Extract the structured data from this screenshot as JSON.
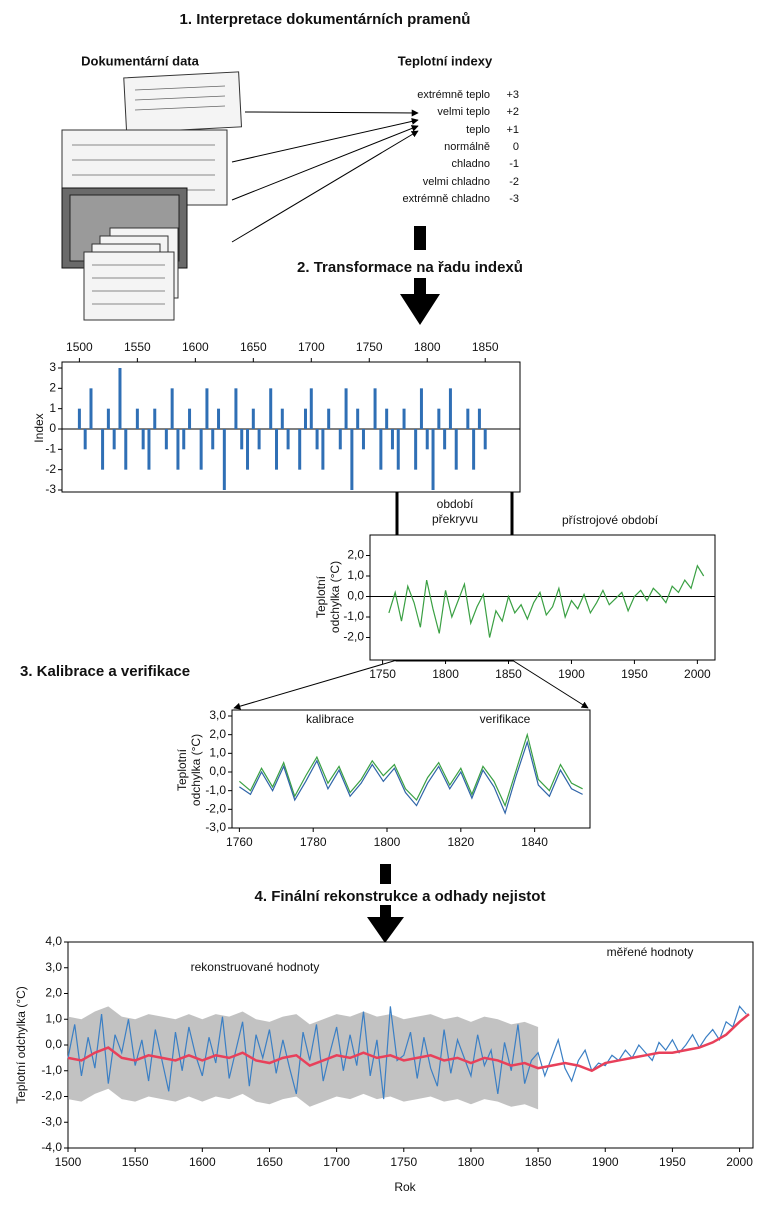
{
  "sections": [
    "1. Interpretace dokumentárních pramenů",
    "2. Transformace na řadu indexů",
    "3. Kalibrace a verifikace",
    "4. Finální rekonstrukce a odhady nejistot"
  ],
  "documentary": {
    "title": "Dokumentární data"
  },
  "index_table": {
    "title": "Teplotní indexy",
    "rows": [
      [
        "extrémně teplo",
        "+3"
      ],
      [
        "velmi teplo",
        "+2"
      ],
      [
        "teplo",
        "+1"
      ],
      [
        "normálně",
        "0"
      ],
      [
        "chladno",
        "-1"
      ],
      [
        "velmi chladno",
        "-2"
      ],
      [
        "extrémně chladno",
        "-3"
      ]
    ]
  },
  "chart_data": [
    {
      "type": "bar",
      "ylabel": [
        "Index"
      ],
      "color": "#2f6fb5",
      "zero_line": true,
      "xlim": [
        1485,
        1880
      ],
      "ylim": [
        -3,
        3
      ],
      "xticks": [
        1500,
        1550,
        1600,
        1650,
        1700,
        1750,
        1800,
        1850
      ],
      "yticks": [
        -3,
        -2,
        -1,
        0,
        1,
        2,
        3
      ],
      "x": [
        1500,
        1505,
        1510,
        1515,
        1520,
        1525,
        1530,
        1535,
        1540,
        1545,
        1550,
        1555,
        1560,
        1565,
        1570,
        1575,
        1580,
        1585,
        1590,
        1595,
        1600,
        1605,
        1610,
        1615,
        1620,
        1625,
        1630,
        1635,
        1640,
        1645,
        1650,
        1655,
        1660,
        1665,
        1670,
        1675,
        1680,
        1685,
        1690,
        1695,
        1700,
        1705,
        1710,
        1715,
        1720,
        1725,
        1730,
        1735,
        1740,
        1745,
        1750,
        1755,
        1760,
        1765,
        1770,
        1775,
        1780,
        1785,
        1790,
        1795,
        1800,
        1805,
        1810,
        1815,
        1820,
        1825,
        1830,
        1835,
        1840,
        1845,
        1850
      ],
      "values": [
        1,
        -1,
        2,
        0,
        -2,
        1,
        -1,
        3,
        -2,
        0,
        1,
        -1,
        -2,
        1,
        0,
        -1,
        2,
        -2,
        -1,
        1,
        0,
        -2,
        2,
        -1,
        1,
        -3,
        0,
        2,
        -1,
        -2,
        1,
        -1,
        0,
        2,
        -2,
        1,
        -1,
        0,
        -2,
        1,
        2,
        -1,
        -2,
        1,
        0,
        -1,
        2,
        -3,
        1,
        -1,
        0,
        2,
        -2,
        1,
        -1,
        -2,
        1,
        0,
        -2,
        2,
        -1,
        -3,
        1,
        -1,
        2,
        -2,
        0,
        1,
        -2,
        1,
        -1
      ]
    },
    {
      "type": "line",
      "ylabel": [
        "Teplotní",
        "odchylka (°C)"
      ],
      "zero_line": true,
      "annotations": [
        "období",
        "překryvu",
        "přístrojové období"
      ],
      "xlim": [
        1740,
        2014
      ],
      "ylim": [
        -3,
        3
      ],
      "xticks": [
        1750,
        1800,
        1850,
        1900,
        1950,
        2000
      ],
      "yticks": [
        {
          "value": 2,
          "label": "2,0"
        },
        {
          "value": 1,
          "label": "1,0"
        },
        {
          "value": 0,
          "label": "0,0"
        },
        {
          "value": -1,
          "label": "-1,0"
        },
        {
          "value": -2,
          "label": "-2,0"
        }
      ],
      "series": [
        {
          "color": "#3aa043",
          "x": [
            1755,
            1760,
            1765,
            1770,
            1775,
            1780,
            1785,
            1790,
            1795,
            1800,
            1805,
            1810,
            1815,
            1820,
            1825,
            1830,
            1835,
            1840,
            1845,
            1850,
            1855,
            1860,
            1865,
            1870,
            1875,
            1880,
            1885,
            1890,
            1895,
            1900,
            1905,
            1910,
            1915,
            1920,
            1925,
            1930,
            1935,
            1940,
            1945,
            1950,
            1955,
            1960,
            1965,
            1970,
            1975,
            1980,
            1985,
            1990,
            1995,
            2000,
            2005
          ],
          "values": [
            -0.8,
            0.2,
            -1.2,
            0.5,
            -0.3,
            -1.5,
            0.8,
            -0.6,
            -1.8,
            0.3,
            -1.0,
            -0.2,
            0.6,
            -1.3,
            -0.5,
            0.1,
            -2.0,
            -0.7,
            -1.2,
            0.0,
            -0.8,
            -0.4,
            -1.1,
            -0.3,
            0.2,
            -0.9,
            -0.5,
            0.4,
            -1.0,
            -0.2,
            -0.6,
            0.1,
            -0.8,
            -0.3,
            0.3,
            -0.4,
            -0.1,
            0.2,
            -0.7,
            0.0,
            0.3,
            -0.2,
            0.4,
            0.1,
            -0.3,
            0.5,
            0.2,
            0.8,
            0.4,
            1.5,
            1.0
          ]
        }
      ]
    },
    {
      "type": "line",
      "ylabel": [
        "Teplotní",
        "odchylka (°C)"
      ],
      "annotations": [
        "kalibrace",
        "verifikace"
      ],
      "xlim": [
        1758,
        1855
      ],
      "ylim": [
        -3,
        3
      ],
      "xticks": [
        1760,
        1780,
        1800,
        1820,
        1840
      ],
      "yticks": [
        {
          "value": 3,
          "label": "3,0"
        },
        {
          "value": 2,
          "label": "2,0"
        },
        {
          "value": 1,
          "label": "1,0"
        },
        {
          "value": 0,
          "label": "0,0"
        },
        {
          "value": -1,
          "label": "-1,0"
        },
        {
          "value": -2,
          "label": "-2,0"
        },
        {
          "value": -3,
          "label": "-3,0"
        }
      ],
      "series": [
        {
          "color": "#3aa043",
          "x": [
            1760,
            1763,
            1766,
            1769,
            1772,
            1775,
            1778,
            1781,
            1784,
            1787,
            1790,
            1793,
            1796,
            1799,
            1802,
            1805,
            1808,
            1811,
            1814,
            1817,
            1820,
            1823,
            1826,
            1829,
            1832,
            1835,
            1838,
            1841,
            1844,
            1847,
            1850,
            1853
          ],
          "values": [
            -0.5,
            -1.0,
            0.2,
            -0.8,
            0.5,
            -1.3,
            -0.2,
            0.8,
            -0.6,
            0.3,
            -1.1,
            -0.4,
            0.6,
            -0.2,
            0.4,
            -0.9,
            -1.5,
            -0.3,
            0.5,
            -0.7,
            0.2,
            -1.2,
            0.3,
            -0.5,
            -1.8,
            0.1,
            2.0,
            -0.4,
            -1.0,
            0.4,
            -0.6,
            -0.9
          ]
        },
        {
          "color": "#2f64a8",
          "x": [
            1760,
            1763,
            1766,
            1769,
            1772,
            1775,
            1778,
            1781,
            1784,
            1787,
            1790,
            1793,
            1796,
            1799,
            1802,
            1805,
            1808,
            1811,
            1814,
            1817,
            1820,
            1823,
            1826,
            1829,
            1832,
            1835,
            1838,
            1841,
            1844,
            1847,
            1850,
            1853
          ],
          "values": [
            -0.8,
            -1.2,
            0.0,
            -1.0,
            0.3,
            -1.5,
            -0.5,
            0.6,
            -0.9,
            0.1,
            -1.3,
            -0.6,
            0.4,
            -0.5,
            0.2,
            -1.1,
            -1.8,
            -0.6,
            0.3,
            -0.9,
            0.0,
            -1.4,
            0.1,
            -0.8,
            -2.2,
            -0.2,
            1.6,
            -0.7,
            -1.3,
            0.1,
            -0.9,
            -1.2
          ]
        }
      ]
    },
    {
      "type": "line",
      "ylabel": [
        "Teplotní odchylka (°C)"
      ],
      "xlabel": "Rok",
      "annotations": [
        "rekonstruované hodnoty",
        "měřené hodnoty"
      ],
      "xlim": [
        1500,
        2010
      ],
      "ylim": [
        -4,
        4
      ],
      "xticks": [
        1500,
        1550,
        1600,
        1650,
        1700,
        1750,
        1800,
        1850,
        1900,
        1950,
        2000
      ],
      "yticks": [
        {
          "value": 4,
          "label": "4,0"
        },
        {
          "value": 3,
          "label": "3,0"
        },
        {
          "value": 2,
          "label": "2,0"
        },
        {
          "value": 1,
          "label": "1,0"
        },
        {
          "value": 0,
          "label": "0,0"
        },
        {
          "value": -1,
          "label": "-1,0"
        },
        {
          "value": -2,
          "label": "-2,0"
        },
        {
          "value": -3,
          "label": "-3,0"
        },
        {
          "value": -4,
          "label": "-4,0"
        }
      ],
      "band": {
        "color": "#9a9a9a",
        "x": [
          1500,
          1510,
          1520,
          1530,
          1540,
          1550,
          1560,
          1570,
          1580,
          1590,
          1600,
          1610,
          1620,
          1630,
          1640,
          1650,
          1660,
          1670,
          1680,
          1690,
          1700,
          1710,
          1720,
          1730,
          1740,
          1750,
          1760,
          1770,
          1780,
          1790,
          1800,
          1810,
          1820,
          1830,
          1840,
          1850
        ],
        "lower": [
          -2.1,
          -2.2,
          -1.9,
          -1.7,
          -2.1,
          -2.2,
          -2.0,
          -2.1,
          -2.2,
          -2.0,
          -2.2,
          -2.0,
          -2.1,
          -1.9,
          -2.2,
          -2.3,
          -2.1,
          -2.0,
          -2.4,
          -2.2,
          -2.0,
          -2.1,
          -1.9,
          -2.1,
          -2.0,
          -2.2,
          -2.1,
          -2.0,
          -2.2,
          -2.1,
          -2.3,
          -2.1,
          -2.2,
          -2.4,
          -2.3,
          -2.5
        ],
        "upper": [
          1.1,
          1.0,
          1.3,
          1.5,
          1.1,
          1.0,
          1.2,
          1.1,
          1.0,
          1.2,
          1.0,
          1.2,
          1.1,
          1.3,
          1.0,
          0.9,
          1.1,
          1.2,
          0.8,
          1.0,
          1.2,
          1.1,
          1.3,
          1.1,
          1.2,
          1.0,
          1.1,
          1.2,
          1.0,
          1.1,
          0.9,
          1.1,
          1.0,
          0.8,
          0.9,
          0.7
        ]
      },
      "series": [
        {
          "color": "#3b7fc4",
          "x": [
            1500,
            1505,
            1510,
            1515,
            1520,
            1525,
            1530,
            1535,
            1540,
            1545,
            1550,
            1555,
            1560,
            1565,
            1570,
            1575,
            1580,
            1585,
            1590,
            1595,
            1600,
            1605,
            1610,
            1615,
            1620,
            1625,
            1630,
            1635,
            1640,
            1645,
            1650,
            1655,
            1660,
            1665,
            1670,
            1675,
            1680,
            1685,
            1690,
            1695,
            1700,
            1705,
            1710,
            1715,
            1720,
            1725,
            1730,
            1735,
            1740,
            1745,
            1750,
            1755,
            1760,
            1765,
            1770,
            1775,
            1780,
            1785,
            1790,
            1795,
            1800,
            1805,
            1810,
            1815,
            1820,
            1825,
            1830,
            1835,
            1840,
            1845,
            1850,
            1855,
            1860,
            1865,
            1870,
            1875,
            1880,
            1885,
            1890,
            1895,
            1900,
            1905,
            1910,
            1915,
            1920,
            1925,
            1930,
            1935,
            1940,
            1945,
            1950,
            1955,
            1960,
            1965,
            1970,
            1975,
            1980,
            1985,
            1990,
            1995,
            2000,
            2005
          ],
          "values": [
            -0.5,
            0.8,
            -1.2,
            0.3,
            -0.9,
            1.2,
            -1.5,
            0.4,
            -0.3,
            1.0,
            -0.8,
            0.2,
            -1.4,
            0.6,
            -0.6,
            -1.8,
            0.5,
            -1.0,
            0.7,
            -0.4,
            -1.2,
            0.3,
            -0.7,
            1.1,
            -1.3,
            -0.2,
            0.9,
            -1.6,
            0.4,
            -0.5,
            0.6,
            -1.1,
            0.2,
            -0.9,
            -1.9,
            0.5,
            -0.6,
            0.8,
            -1.4,
            -0.3,
            0.7,
            -1.0,
            0.4,
            -0.8,
            1.3,
            -1.2,
            0.2,
            -2.1,
            1.5,
            -0.6,
            -0.4,
            0.5,
            -1.3,
            0.3,
            -0.9,
            -1.6,
            0.6,
            -1.1,
            0.2,
            -0.5,
            -1.2,
            0.4,
            -0.8,
            -0.2,
            -1.9,
            0.1,
            -1.0,
            0.8,
            -1.5,
            -0.6,
            -0.3,
            -1.2,
            -0.5,
            0.2,
            -0.9,
            -1.4,
            -0.6,
            -0.2,
            -1.0,
            -0.7,
            -0.8,
            -0.4,
            -0.6,
            -0.2,
            -0.5,
            0.0,
            -0.3,
            -0.6,
            0.1,
            -0.2,
            0.2,
            -0.3,
            0.0,
            0.4,
            -0.1,
            0.3,
            0.6,
            0.2,
            0.9,
            0.7,
            1.5,
            1.2
          ]
        },
        {
          "color": "#e8405a",
          "x": [
            1500,
            1510,
            1520,
            1530,
            1540,
            1550,
            1560,
            1570,
            1580,
            1590,
            1600,
            1610,
            1620,
            1630,
            1640,
            1650,
            1660,
            1670,
            1680,
            1690,
            1700,
            1710,
            1720,
            1730,
            1740,
            1750,
            1760,
            1770,
            1780,
            1790,
            1800,
            1810,
            1820,
            1830,
            1840,
            1850,
            1860,
            1870,
            1880,
            1890,
            1900,
            1910,
            1920,
            1930,
            1940,
            1950,
            1960,
            1970,
            1980,
            1990,
            2000,
            2007
          ],
          "values": [
            -0.5,
            -0.6,
            -0.3,
            -0.1,
            -0.5,
            -0.6,
            -0.4,
            -0.5,
            -0.6,
            -0.4,
            -0.6,
            -0.4,
            -0.5,
            -0.3,
            -0.6,
            -0.7,
            -0.5,
            -0.4,
            -0.8,
            -0.6,
            -0.4,
            -0.5,
            -0.3,
            -0.5,
            -0.4,
            -0.6,
            -0.5,
            -0.4,
            -0.6,
            -0.5,
            -0.7,
            -0.5,
            -0.6,
            -0.8,
            -0.7,
            -0.9,
            -0.8,
            -0.7,
            -0.8,
            -1.0,
            -0.7,
            -0.6,
            -0.5,
            -0.4,
            -0.3,
            -0.3,
            -0.2,
            -0.1,
            0.1,
            0.4,
            0.9,
            1.2
          ]
        }
      ]
    }
  ]
}
